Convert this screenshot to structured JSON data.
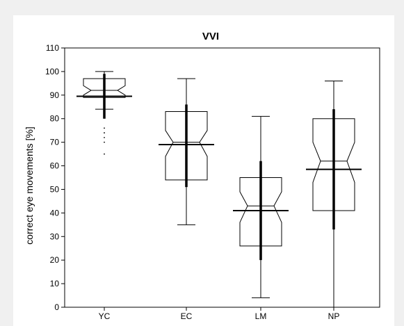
{
  "chart_data": {
    "type": "box",
    "title": "VVI",
    "xlabel": "",
    "ylabel": "correct eye movements [%]",
    "ylim": [
      0,
      110
    ],
    "yticks": [
      0,
      10,
      20,
      30,
      40,
      50,
      60,
      70,
      80,
      90,
      100,
      110
    ],
    "categories": [
      "YC",
      "EC",
      "LM",
      "NP"
    ],
    "boxes": [
      {
        "category": "YC",
        "whisker_low": 84,
        "q1": 89,
        "median": 92,
        "q3": 97,
        "whisker_high": 100,
        "notch_low": 90,
        "notch_high": 94,
        "mean": 89.5,
        "sd_low": 80,
        "sd_high": 99,
        "outliers": [
          65,
          70,
          72,
          74,
          76
        ]
      },
      {
        "category": "EC",
        "whisker_low": 35,
        "q1": 54,
        "median": 70,
        "q3": 83,
        "whisker_high": 97,
        "notch_low": 64,
        "notch_high": 75,
        "mean": 69,
        "sd_low": 51,
        "sd_high": 86,
        "outliers": []
      },
      {
        "category": "LM",
        "whisker_low": 4,
        "q1": 26,
        "median": 43,
        "q3": 55,
        "whisker_high": 81,
        "notch_low": 36,
        "notch_high": 49,
        "mean": 41,
        "sd_low": 20,
        "sd_high": 62,
        "outliers": []
      },
      {
        "category": "NP",
        "whisker_low": 0,
        "q1": 41,
        "median": 62,
        "q3": 80,
        "whisker_high": 96,
        "notch_low": 53,
        "notch_high": 70,
        "mean": 58.5,
        "sd_low": 33,
        "sd_high": 84,
        "outliers": []
      }
    ],
    "grid": false,
    "legend": "none"
  }
}
